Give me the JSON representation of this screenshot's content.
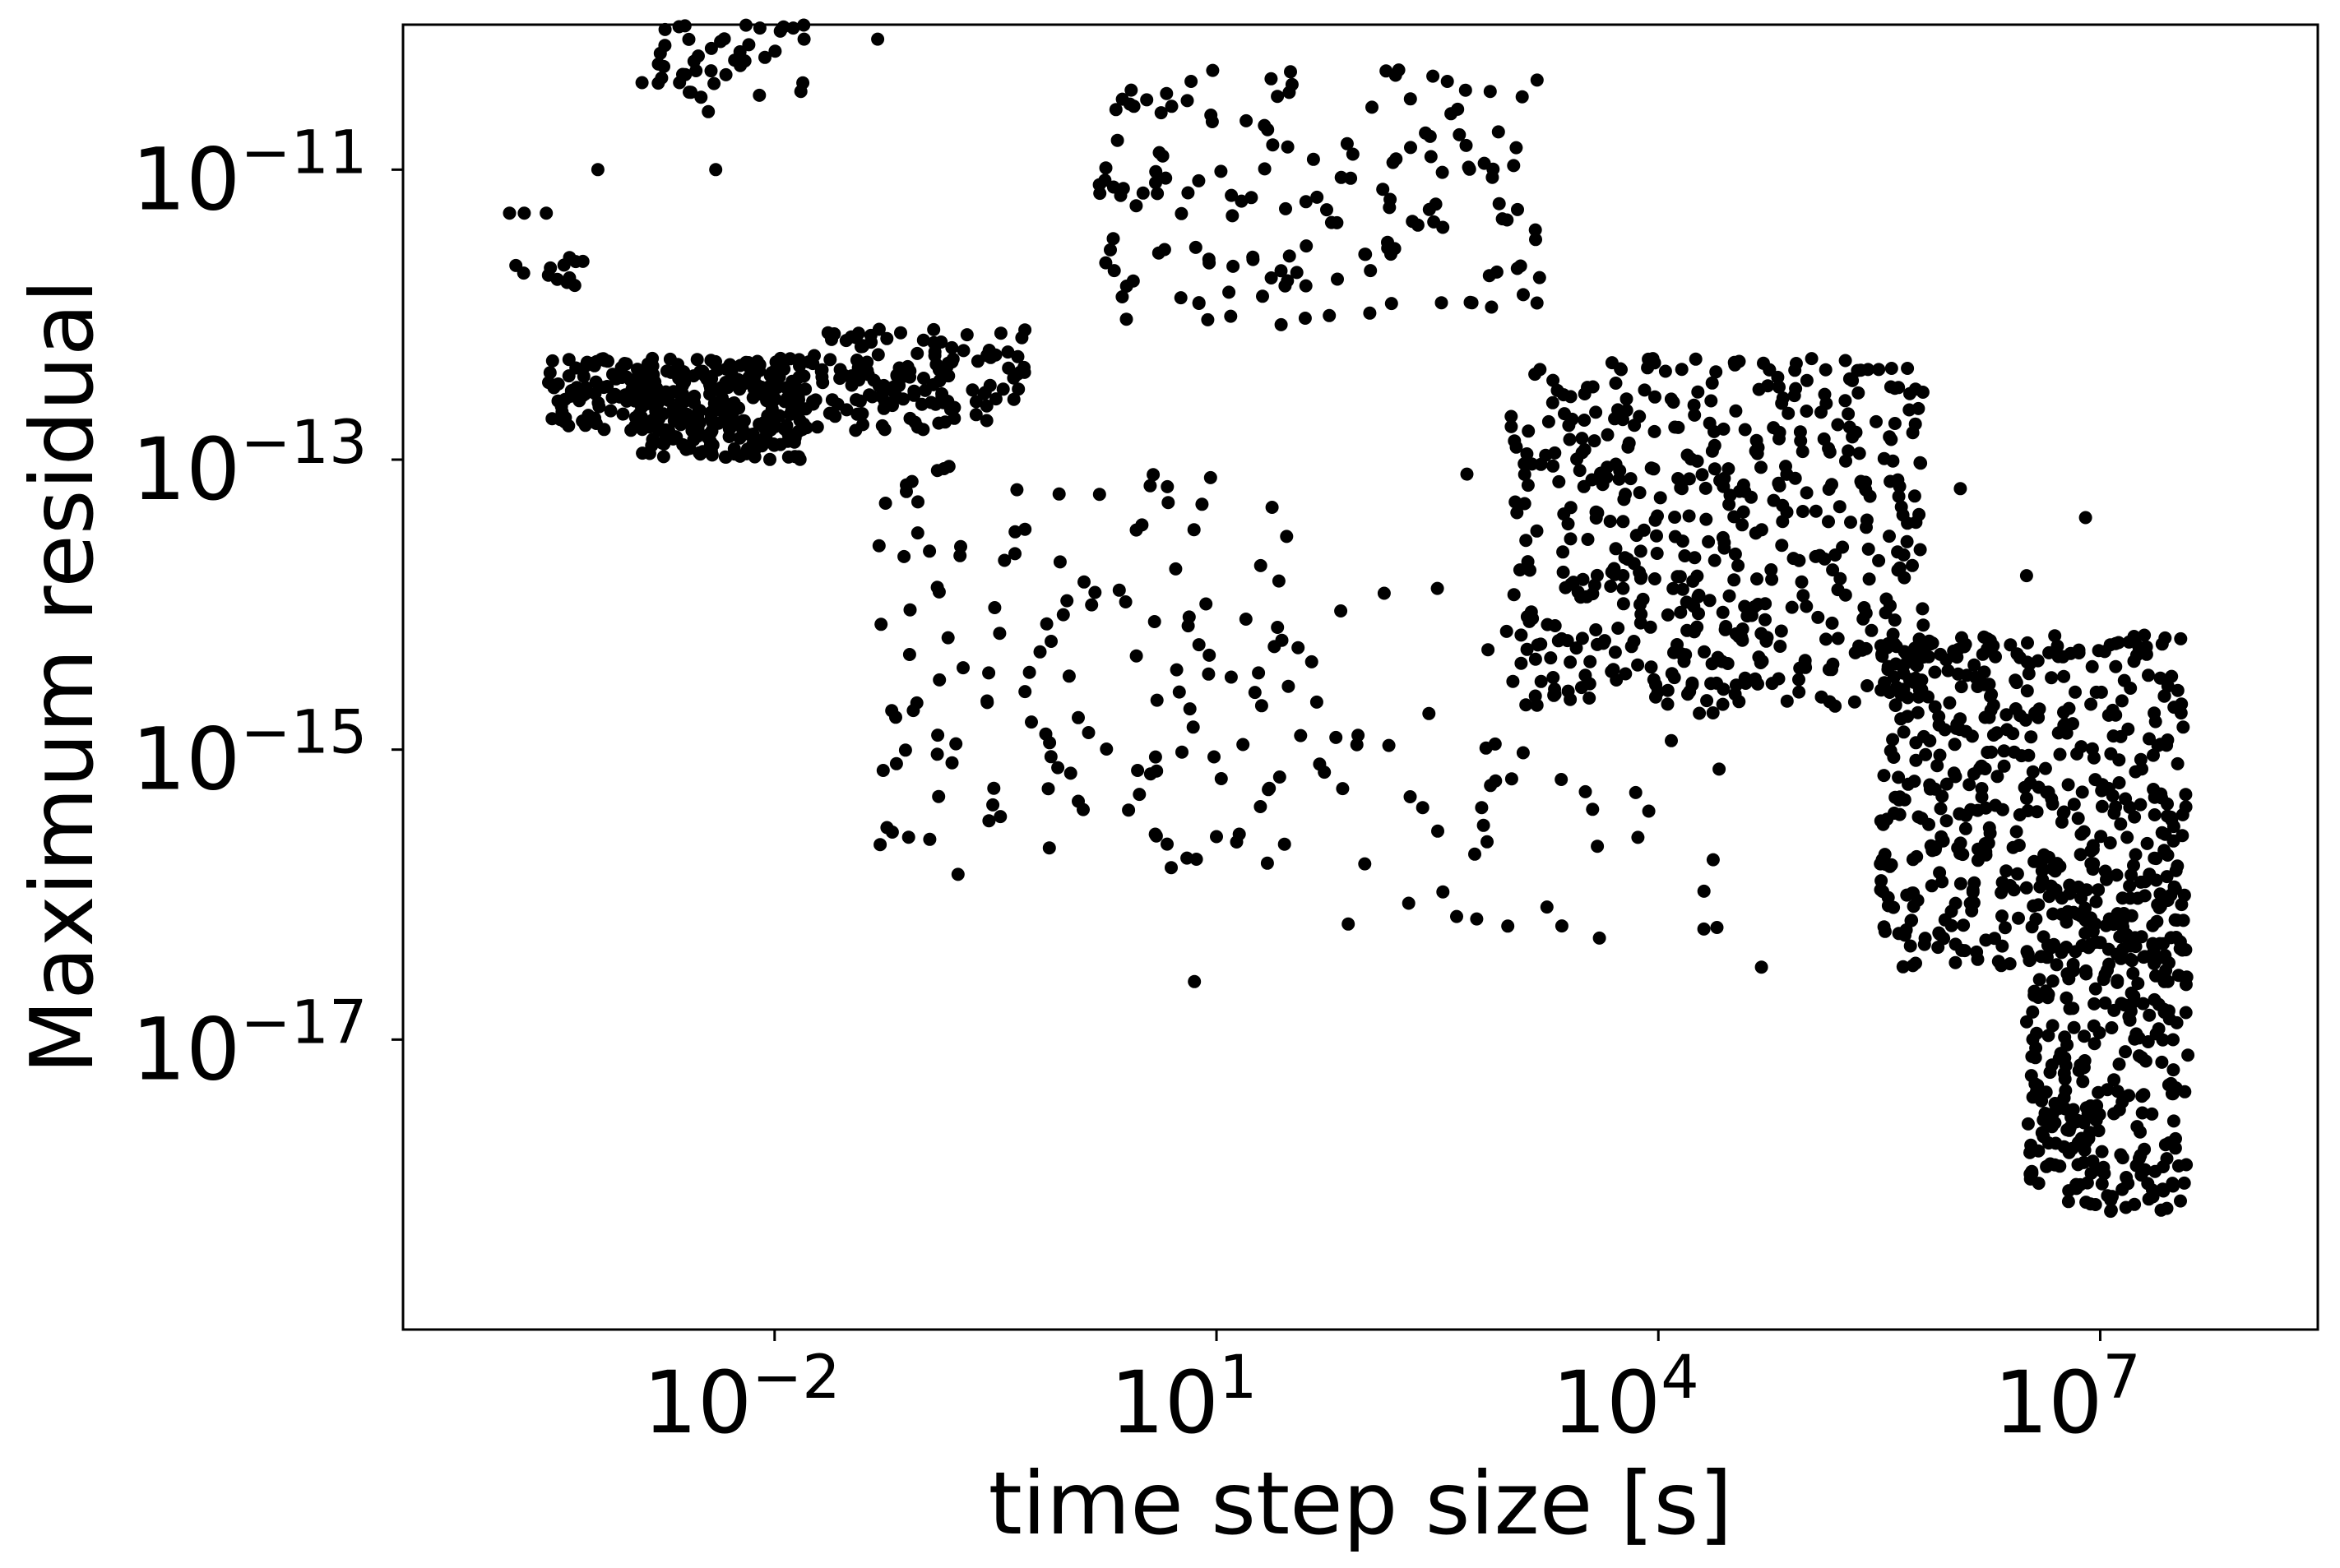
{
  "chart_data": {
    "type": "scatter",
    "xlabel": "time step size [s]",
    "ylabel": "Maximum residual",
    "x_scale": "log",
    "y_scale": "log",
    "xlim": [
      3e-05,
      300000000
    ],
    "ylim": [
      1e-19,
      1e-10
    ],
    "x_ticks": [
      {
        "base": "10",
        "exp": "−2",
        "value": 0.01
      },
      {
        "base": "10",
        "exp": "1",
        "value": 10
      },
      {
        "base": "10",
        "exp": "4",
        "value": 10000
      },
      {
        "base": "10",
        "exp": "7",
        "value": 10000000
      }
    ],
    "y_ticks": [
      {
        "base": "10",
        "exp": "−11",
        "value": 1e-11
      },
      {
        "base": "10",
        "exp": "−13",
        "value": 1e-13
      },
      {
        "base": "10",
        "exp": "−15",
        "value": 1e-15
      },
      {
        "base": "10",
        "exp": "−17",
        "value": 1e-17
      }
    ],
    "grid": false,
    "legend": "none",
    "marker_color": "#000000",
    "clusters": [
      {
        "x_log10": [
          -3.85,
          -3.3
        ],
        "y_log10": [
          -11.8,
          -11.6
        ],
        "count": 12
      },
      {
        "x_log10": [
          -3.55,
          -2.8
        ],
        "y_log10": [
          -12.8,
          -12.3
        ],
        "count": 90
      },
      {
        "x_log10": [
          -2.9,
          -1.8
        ],
        "y_log10": [
          -13.0,
          -12.3
        ],
        "count": 260
      },
      {
        "x_log10": [
          -1.8,
          -0.3
        ],
        "y_log10": [
          -12.8,
          -12.1
        ],
        "count": 150
      },
      {
        "x_log10": [
          -1.3,
          1.5
        ],
        "y_log10": [
          -15.9,
          -13.0
        ],
        "count": 140
      },
      {
        "x_log10": [
          -2.8,
          -1.8
        ],
        "y_log10": [
          -10.5,
          -10.0
        ],
        "count": 40
      },
      {
        "x_log10": [
          0.2,
          3.2
        ],
        "y_log10": [
          -12.1,
          -10.3
        ],
        "count": 160
      },
      {
        "x_log10": [
          3.0,
          5.8
        ],
        "y_log10": [
          -14.7,
          -12.3
        ],
        "count": 500
      },
      {
        "x_log10": [
          5.5,
          7.6
        ],
        "y_log10": [
          -16.5,
          -14.2
        ],
        "count": 500
      },
      {
        "x_log10": [
          6.5,
          7.6
        ],
        "y_log10": [
          -18.2,
          -16.0
        ],
        "count": 280
      },
      {
        "x_log10": [
          1.5,
          4.5
        ],
        "y_log10": [
          -16.3,
          -13.8
        ],
        "count": 60
      }
    ],
    "points": [
      [
        -3.8,
        -11.3
      ],
      [
        -3.7,
        -11.3
      ],
      [
        -3.55,
        -11.3
      ],
      [
        -3.2,
        -11.0
      ],
      [
        -2.9,
        -10.4
      ],
      [
        -2.4,
        -11.0
      ],
      [
        -2.45,
        -10.6
      ],
      [
        -2.5,
        -10.5
      ],
      [
        -1.8,
        -10.1
      ],
      [
        -1.3,
        -10.1
      ],
      [
        -0.3,
        -14.6
      ],
      [
        1.0,
        -15.6
      ],
      [
        0.85,
        -16.6
      ],
      [
        1.1,
        -14.5
      ],
      [
        1.2,
        -14.1
      ],
      [
        2.4,
        -15.4
      ],
      [
        1.7,
        -15.1
      ],
      [
        2.8,
        -15.4
      ],
      [
        3.6,
        -16.3
      ],
      [
        5.6,
        -14.5
      ],
      [
        5.2,
        -14.7
      ],
      [
        4.7,
        -16.5
      ],
      [
        2.7,
        -13.1
      ],
      [
        6.9,
        -13.4
      ],
      [
        6.5,
        -13.8
      ],
      [
        6.05,
        -13.2
      ],
      [
        7.33,
        -18.1
      ],
      [
        7.25,
        -17.6
      ]
    ]
  }
}
